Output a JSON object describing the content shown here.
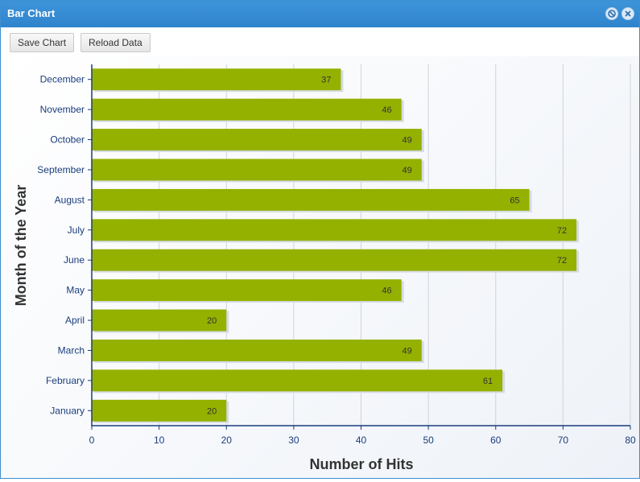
{
  "window": {
    "title": "Bar Chart",
    "colors": {
      "titlebar": "#3a8fd6",
      "bar": "#94b100",
      "axis": "#1a3d7c",
      "label": "#1a3d7c"
    }
  },
  "toolbar": {
    "save_label": "Save Chart",
    "reload_label": "Reload Data"
  },
  "tools": {
    "collapse_icon": "collapse-icon",
    "close_icon": "close-icon"
  },
  "chart_data": {
    "type": "bar",
    "orientation": "horizontal",
    "categories": [
      "January",
      "February",
      "March",
      "April",
      "May",
      "June",
      "July",
      "August",
      "September",
      "October",
      "November",
      "December"
    ],
    "values": [
      20,
      61,
      49,
      20,
      46,
      72,
      72,
      65,
      49,
      49,
      46,
      37
    ],
    "xlabel": "Number of Hits",
    "ylabel": "Month of the Year",
    "xlim": [
      0,
      80
    ],
    "xticks": [
      0,
      10,
      20,
      30,
      40,
      50,
      60,
      70,
      80
    ],
    "grid": true,
    "data_labels": true
  }
}
